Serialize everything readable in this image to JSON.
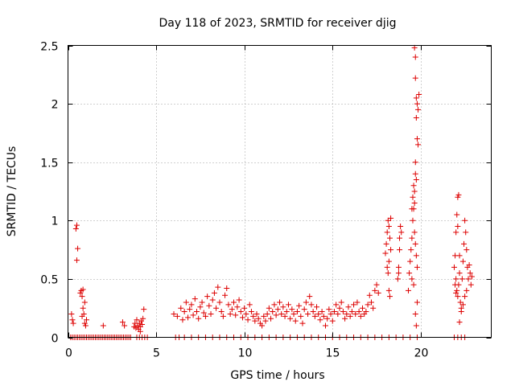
{
  "chart_data": {
    "type": "scatter",
    "title": "Day 118 of 2023, SRMTID for receiver djig",
    "xlabel": "GPS time / hours",
    "ylabel": "SRMTID / TECUs",
    "xlim": [
      0,
      24
    ],
    "ylim": [
      0,
      2.5
    ],
    "grid": true,
    "marker": "plus",
    "color": "#dd0000",
    "x_ticks": [
      0,
      5,
      10,
      15,
      20
    ],
    "x_tick_labels": [
      "0",
      "5",
      "10",
      "15",
      "20"
    ],
    "y_ticks": [
      0,
      0.5,
      1,
      1.5,
      2,
      2.5
    ],
    "y_tick_labels": [
      "0",
      "0.5",
      "1",
      "1.5",
      "2",
      "2.5"
    ],
    "series": [
      {
        "name": "SRMTID",
        "points": [
          [
            0.15,
            0.0
          ],
          [
            0.25,
            0.0
          ],
          [
            0.35,
            0.0
          ],
          [
            0.45,
            0.0
          ],
          [
            0.55,
            0.0
          ],
          [
            0.65,
            0.0
          ],
          [
            0.75,
            0.0
          ],
          [
            0.85,
            0.0
          ],
          [
            0.95,
            0.0
          ],
          [
            1.05,
            0.0
          ],
          [
            1.15,
            0.0
          ],
          [
            1.25,
            0.0
          ],
          [
            1.35,
            0.0
          ],
          [
            1.45,
            0.0
          ],
          [
            1.55,
            0.0
          ],
          [
            1.65,
            0.0
          ],
          [
            1.75,
            0.0
          ],
          [
            1.85,
            0.0
          ],
          [
            1.95,
            0.0
          ],
          [
            2.05,
            0.0
          ],
          [
            2.15,
            0.0
          ],
          [
            2.25,
            0.0
          ],
          [
            2.35,
            0.0
          ],
          [
            2.45,
            0.0
          ],
          [
            2.55,
            0.0
          ],
          [
            2.65,
            0.0
          ],
          [
            2.75,
            0.0
          ],
          [
            2.85,
            0.0
          ],
          [
            2.95,
            0.0
          ],
          [
            3.05,
            0.0
          ],
          [
            3.15,
            0.0
          ],
          [
            3.25,
            0.0
          ],
          [
            3.35,
            0.0
          ],
          [
            3.45,
            0.0
          ],
          [
            3.55,
            0.0
          ],
          [
            3.9,
            0.0
          ],
          [
            4.05,
            0.0
          ],
          [
            4.2,
            0.0
          ],
          [
            4.35,
            0.0
          ],
          [
            4.5,
            0.0
          ],
          [
            6.1,
            0.0
          ],
          [
            6.3,
            0.0
          ],
          [
            6.6,
            0.0
          ],
          [
            7.0,
            0.0
          ],
          [
            7.4,
            0.0
          ],
          [
            7.8,
            0.0
          ],
          [
            8.2,
            0.0
          ],
          [
            8.6,
            0.0
          ],
          [
            9.0,
            0.0
          ],
          [
            9.4,
            0.0
          ],
          [
            9.8,
            0.0
          ],
          [
            10.2,
            0.0
          ],
          [
            10.6,
            0.0
          ],
          [
            11.0,
            0.0
          ],
          [
            11.4,
            0.0
          ],
          [
            11.8,
            0.0
          ],
          [
            12.2,
            0.0
          ],
          [
            12.6,
            0.0
          ],
          [
            13.0,
            0.0
          ],
          [
            13.4,
            0.0
          ],
          [
            13.8,
            0.0
          ],
          [
            14.2,
            0.0
          ],
          [
            14.6,
            0.0
          ],
          [
            15.0,
            0.0
          ],
          [
            15.4,
            0.0
          ],
          [
            15.8,
            0.0
          ],
          [
            16.2,
            0.0
          ],
          [
            16.6,
            0.0
          ],
          [
            17.0,
            0.0
          ],
          [
            17.4,
            0.0
          ],
          [
            17.8,
            0.0
          ],
          [
            18.2,
            0.0
          ],
          [
            18.6,
            0.0
          ],
          [
            19.0,
            0.0
          ],
          [
            19.4,
            0.0
          ],
          [
            19.8,
            0.0
          ],
          [
            21.9,
            0.0
          ],
          [
            22.1,
            0.0
          ],
          [
            22.3,
            0.0
          ],
          [
            22.5,
            0.0
          ],
          [
            0.2,
            0.2
          ],
          [
            0.25,
            0.15
          ],
          [
            0.3,
            0.12
          ],
          [
            0.45,
            0.93
          ],
          [
            0.5,
            0.96
          ],
          [
            0.55,
            0.76
          ],
          [
            0.5,
            0.66
          ],
          [
            0.7,
            0.38
          ],
          [
            0.75,
            0.4
          ],
          [
            0.8,
            0.35
          ],
          [
            0.85,
            0.25
          ],
          [
            0.9,
            0.2
          ],
          [
            0.8,
            0.18
          ],
          [
            0.95,
            0.12
          ],
          [
            1.0,
            0.1
          ],
          [
            0.85,
            0.41
          ],
          [
            0.95,
            0.3
          ],
          [
            1.05,
            0.15
          ],
          [
            2.0,
            0.1
          ],
          [
            3.1,
            0.13
          ],
          [
            3.2,
            0.1
          ],
          [
            3.8,
            0.12
          ],
          [
            3.85,
            0.08
          ],
          [
            3.9,
            0.15
          ],
          [
            3.95,
            0.1
          ],
          [
            4.0,
            0.07
          ],
          [
            4.05,
            0.12
          ],
          [
            4.1,
            0.09
          ],
          [
            4.15,
            0.14
          ],
          [
            4.2,
            0.11
          ],
          [
            4.25,
            0.16
          ],
          [
            4.3,
            0.24
          ],
          [
            4.1,
            0.05
          ],
          [
            3.75,
            0.09
          ],
          [
            6.0,
            0.2
          ],
          [
            6.2,
            0.18
          ],
          [
            6.4,
            0.25
          ],
          [
            6.5,
            0.15
          ],
          [
            6.6,
            0.22
          ],
          [
            6.7,
            0.3
          ],
          [
            6.8,
            0.17
          ],
          [
            6.9,
            0.24
          ],
          [
            7.0,
            0.28
          ],
          [
            7.1,
            0.19
          ],
          [
            7.2,
            0.33
          ],
          [
            7.3,
            0.22
          ],
          [
            7.4,
            0.16
          ],
          [
            7.5,
            0.26
          ],
          [
            7.6,
            0.3
          ],
          [
            7.7,
            0.21
          ],
          [
            7.8,
            0.18
          ],
          [
            7.9,
            0.35
          ],
          [
            8.0,
            0.27
          ],
          [
            8.1,
            0.2
          ],
          [
            8.2,
            0.32
          ],
          [
            8.3,
            0.38
          ],
          [
            8.4,
            0.25
          ],
          [
            8.5,
            0.43
          ],
          [
            8.6,
            0.3
          ],
          [
            8.7,
            0.22
          ],
          [
            8.8,
            0.18
          ],
          [
            8.9,
            0.36
          ],
          [
            9.0,
            0.42
          ],
          [
            9.1,
            0.28
          ],
          [
            9.2,
            0.2
          ],
          [
            9.3,
            0.24
          ],
          [
            9.4,
            0.3
          ],
          [
            9.5,
            0.19
          ],
          [
            9.6,
            0.26
          ],
          [
            9.7,
            0.32
          ],
          [
            9.8,
            0.22
          ],
          [
            9.9,
            0.17
          ],
          [
            10.0,
            0.25
          ],
          [
            10.1,
            0.2
          ],
          [
            10.2,
            0.15
          ],
          [
            10.3,
            0.28
          ],
          [
            10.4,
            0.22
          ],
          [
            10.5,
            0.18
          ],
          [
            10.6,
            0.14
          ],
          [
            10.7,
            0.2
          ],
          [
            10.8,
            0.16
          ],
          [
            10.9,
            0.12
          ],
          [
            11.0,
            0.1
          ],
          [
            11.1,
            0.18
          ],
          [
            11.2,
            0.14
          ],
          [
            11.3,
            0.2
          ],
          [
            11.4,
            0.25
          ],
          [
            11.5,
            0.16
          ],
          [
            11.6,
            0.22
          ],
          [
            11.7,
            0.28
          ],
          [
            11.8,
            0.19
          ],
          [
            11.9,
            0.24
          ],
          [
            12.0,
            0.3
          ],
          [
            12.1,
            0.2
          ],
          [
            12.2,
            0.26
          ],
          [
            12.3,
            0.18
          ],
          [
            12.4,
            0.22
          ],
          [
            12.5,
            0.28
          ],
          [
            12.6,
            0.16
          ],
          [
            12.7,
            0.24
          ],
          [
            12.8,
            0.2
          ],
          [
            12.9,
            0.14
          ],
          [
            13.0,
            0.22
          ],
          [
            13.1,
            0.27
          ],
          [
            13.2,
            0.18
          ],
          [
            13.3,
            0.12
          ],
          [
            13.4,
            0.24
          ],
          [
            13.5,
            0.3
          ],
          [
            13.6,
            0.2
          ],
          [
            13.7,
            0.35
          ],
          [
            13.8,
            0.28
          ],
          [
            13.9,
            0.22
          ],
          [
            14.0,
            0.18
          ],
          [
            14.1,
            0.26
          ],
          [
            14.2,
            0.2
          ],
          [
            14.3,
            0.15
          ],
          [
            14.4,
            0.22
          ],
          [
            14.5,
            0.18
          ],
          [
            14.6,
            0.1
          ],
          [
            14.7,
            0.16
          ],
          [
            14.8,
            0.24
          ],
          [
            14.9,
            0.2
          ],
          [
            15.0,
            0.14
          ],
          [
            15.1,
            0.22
          ],
          [
            15.2,
            0.28
          ],
          [
            15.3,
            0.2
          ],
          [
            15.4,
            0.25
          ],
          [
            15.5,
            0.3
          ],
          [
            15.6,
            0.22
          ],
          [
            15.7,
            0.16
          ],
          [
            15.8,
            0.2
          ],
          [
            15.9,
            0.26
          ],
          [
            16.0,
            0.18
          ],
          [
            16.1,
            0.22
          ],
          [
            16.2,
            0.28
          ],
          [
            16.3,
            0.2
          ],
          [
            16.4,
            0.3
          ],
          [
            16.5,
            0.22
          ],
          [
            16.6,
            0.18
          ],
          [
            16.7,
            0.25
          ],
          [
            16.8,
            0.2
          ],
          [
            16.9,
            0.22
          ],
          [
            17.0,
            0.28
          ],
          [
            17.1,
            0.36
          ],
          [
            17.2,
            0.3
          ],
          [
            17.3,
            0.25
          ],
          [
            17.4,
            0.4
          ],
          [
            17.5,
            0.45
          ],
          [
            17.6,
            0.38
          ],
          [
            18.0,
            0.72
          ],
          [
            18.05,
            0.8
          ],
          [
            18.1,
            0.9
          ],
          [
            18.15,
            1.0
          ],
          [
            18.2,
            0.95
          ],
          [
            18.25,
            0.85
          ],
          [
            18.3,
            0.75
          ],
          [
            18.1,
            0.6
          ],
          [
            18.15,
            0.55
          ],
          [
            18.2,
            0.65
          ],
          [
            18.3,
            1.02
          ],
          [
            18.2,
            0.4
          ],
          [
            18.25,
            0.35
          ],
          [
            18.7,
            0.5
          ],
          [
            18.75,
            0.6
          ],
          [
            18.8,
            0.85
          ],
          [
            18.85,
            0.95
          ],
          [
            18.9,
            0.9
          ],
          [
            18.8,
            0.75
          ],
          [
            18.75,
            0.55
          ],
          [
            19.3,
            0.4
          ],
          [
            19.35,
            0.55
          ],
          [
            19.4,
            0.65
          ],
          [
            19.45,
            0.75
          ],
          [
            19.5,
            0.85
          ],
          [
            19.55,
            1.0
          ],
          [
            19.5,
            1.1
          ],
          [
            19.55,
            1.2
          ],
          [
            19.6,
            1.3
          ],
          [
            19.65,
            1.25
          ],
          [
            19.7,
            1.4
          ],
          [
            19.6,
            1.1
          ],
          [
            19.65,
            0.9
          ],
          [
            19.7,
            0.8
          ],
          [
            19.75,
            0.7
          ],
          [
            19.8,
            0.6
          ],
          [
            19.5,
            0.5
          ],
          [
            19.6,
            0.45
          ],
          [
            19.65,
            2.48
          ],
          [
            19.7,
            2.4
          ],
          [
            19.7,
            2.22
          ],
          [
            19.75,
            2.05
          ],
          [
            19.8,
            2.0
          ],
          [
            19.85,
            1.95
          ],
          [
            19.75,
            1.88
          ],
          [
            19.8,
            1.7
          ],
          [
            19.85,
            1.65
          ],
          [
            19.9,
            2.08
          ],
          [
            19.7,
            1.5
          ],
          [
            19.75,
            1.35
          ],
          [
            19.65,
            1.15
          ],
          [
            19.8,
            0.3
          ],
          [
            19.7,
            0.2
          ],
          [
            19.75,
            0.1
          ],
          [
            21.9,
            0.6
          ],
          [
            21.95,
            0.7
          ],
          [
            22.0,
            0.9
          ],
          [
            22.05,
            1.05
          ],
          [
            22.1,
            1.2
          ],
          [
            22.15,
            1.22
          ],
          [
            22.0,
            0.5
          ],
          [
            22.05,
            0.4
          ],
          [
            22.1,
            0.35
          ],
          [
            22.15,
            0.45
          ],
          [
            22.2,
            0.55
          ],
          [
            22.25,
            0.3
          ],
          [
            22.3,
            0.25
          ],
          [
            22.35,
            0.5
          ],
          [
            22.4,
            0.65
          ],
          [
            22.45,
            0.8
          ],
          [
            22.5,
            1.0
          ],
          [
            22.55,
            0.9
          ],
          [
            22.6,
            0.75
          ],
          [
            22.65,
            0.6
          ],
          [
            22.7,
            0.5
          ],
          [
            22.75,
            0.62
          ],
          [
            22.8,
            0.55
          ],
          [
            22.85,
            0.45
          ],
          [
            22.9,
            0.52
          ],
          [
            22.2,
            0.13
          ],
          [
            22.3,
            0.22
          ],
          [
            22.4,
            0.28
          ],
          [
            22.5,
            0.35
          ],
          [
            22.6,
            0.4
          ],
          [
            22.0,
            0.38
          ],
          [
            21.95,
            0.45
          ],
          [
            22.1,
            0.95
          ],
          [
            22.2,
            0.7
          ]
        ]
      }
    ]
  }
}
